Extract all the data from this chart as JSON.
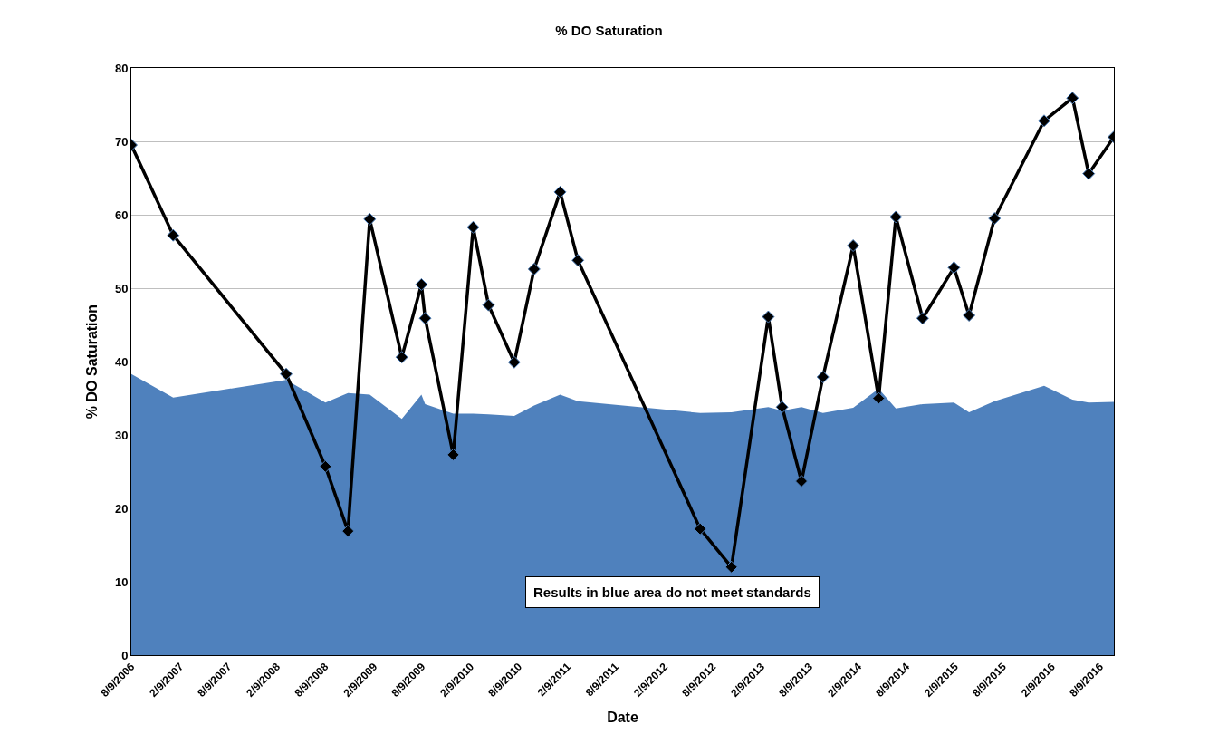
{
  "chart_data": {
    "type": "line",
    "title": "% DO Saturation",
    "xlabel": "Date",
    "ylabel": "% DO Saturation",
    "x": [
      "2006-08-09",
      "2007-01-14",
      "2008-03-15",
      "2008-08-10",
      "2008-11-03",
      "2009-01-24",
      "2009-05-25",
      "2009-08-07",
      "2009-08-21",
      "2009-12-05",
      "2010-02-18",
      "2010-04-17",
      "2010-07-23",
      "2010-10-06",
      "2011-01-12",
      "2011-03-20",
      "2012-06-23",
      "2012-10-19",
      "2013-03-07",
      "2013-04-28",
      "2013-07-10",
      "2013-09-29",
      "2014-01-21",
      "2014-04-27",
      "2014-07-01",
      "2014-10-10",
      "2015-02-05",
      "2015-04-03",
      "2015-07-08",
      "2016-01-11",
      "2016-04-27",
      "2016-06-27",
      "2016-09-30"
    ],
    "series": [
      {
        "type": "area",
        "color": "#4f81bd",
        "values": [
          38.3,
          35.1,
          37.5,
          34.4,
          35.7,
          35.5,
          32.2,
          35.5,
          34.2,
          32.9,
          32.9,
          32.8,
          32.6,
          34.0,
          35.5,
          34.6,
          33.0,
          33.1,
          33.8,
          33.3,
          33.8,
          33.0,
          33.7,
          36.3,
          33.6,
          34.2,
          34.4,
          33.1,
          34.6,
          36.7,
          34.8,
          34.4,
          34.5
        ]
      },
      {
        "color": "#000000",
        "marker": "diamond",
        "line_style": "solid",
        "values": [
          69.5,
          57.2,
          38.3,
          25.7,
          16.9,
          59.4,
          40.6,
          50.5,
          45.9,
          27.3,
          58.3,
          47.7,
          39.9,
          52.6,
          63.1,
          53.8,
          17.2,
          12.0,
          46.1,
          33.8,
          23.7,
          37.9,
          55.8,
          35.0,
          59.7,
          45.9,
          52.8,
          46.3,
          59.5,
          72.8,
          75.9,
          65.6,
          70.6
        ]
      }
    ],
    "xlim": [
      "2006-08-09",
      "2016-09-30"
    ],
    "xticks": [
      {
        "value": "2006-08-09",
        "label": "8/9/2006"
      },
      {
        "value": "2007-02-09",
        "label": "2/9/2007"
      },
      {
        "value": "2007-08-09",
        "label": "8/9/2007"
      },
      {
        "value": "2008-02-09",
        "label": "2/9/2008"
      },
      {
        "value": "2008-08-09",
        "label": "8/9/2008"
      },
      {
        "value": "2009-02-09",
        "label": "2/9/2009"
      },
      {
        "value": "2009-08-09",
        "label": "8/9/2009"
      },
      {
        "value": "2010-02-09",
        "label": "2/9/2010"
      },
      {
        "value": "2010-08-09",
        "label": "8/9/2010"
      },
      {
        "value": "2011-02-09",
        "label": "2/9/2011"
      },
      {
        "value": "2011-08-09",
        "label": "8/9/2011"
      },
      {
        "value": "2012-02-09",
        "label": "2/9/2012"
      },
      {
        "value": "2012-08-09",
        "label": "8/9/2012"
      },
      {
        "value": "2013-02-09",
        "label": "2/9/2013"
      },
      {
        "value": "2013-08-09",
        "label": "8/9/2013"
      },
      {
        "value": "2014-02-09",
        "label": "2/9/2014"
      },
      {
        "value": "2014-08-09",
        "label": "8/9/2014"
      },
      {
        "value": "2015-02-09",
        "label": "2/9/2015"
      },
      {
        "value": "2015-08-09",
        "label": "8/9/2015"
      },
      {
        "value": "2016-02-09",
        "label": "2/9/2016"
      },
      {
        "value": "2016-08-09",
        "label": "8/9/2016"
      }
    ],
    "ylim": [
      0,
      80
    ],
    "yticks": [
      0,
      10,
      20,
      30,
      40,
      50,
      60,
      70,
      80
    ],
    "grid": "y",
    "annotations": [
      "Results in blue area do not meet standards"
    ]
  }
}
